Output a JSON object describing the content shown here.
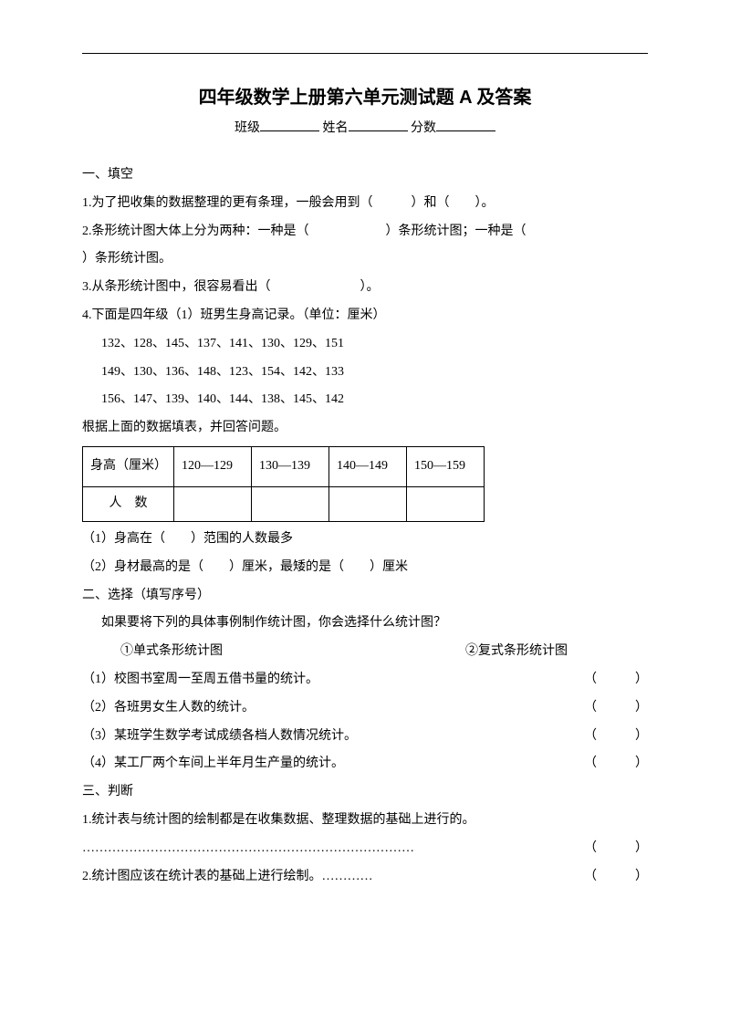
{
  "title": "四年级数学上册第六单元测试题 A 及答案",
  "info": {
    "class": "班级",
    "name": "姓名",
    "score": "分数"
  },
  "s1": {
    "heading": "一、填空",
    "q1": "1.为了把收集的数据整理的更有条理，一般会用到（　　　）和（　　）。",
    "q2a": "2.条形统计图大体上分为两种：一种是（　　　　　　）条形统计图；一种是（",
    "q2b": "）条形统计图。",
    "q3": "3.从条形统计图中，很容易看出（　　　　　　　）。",
    "q4": "4.下面是四年级（1）班男生身高记录。（单位：厘米）",
    "q4_data1": "132、128、145、137、141、130、129、151",
    "q4_data2": "149、130、136、148、123、154、142、133",
    "q4_data3": "156、147、139、140、144、138、145、142",
    "q4_prompt": "根据上面的数据填表，并回答问题。",
    "table": {
      "header": "身高（厘米）",
      "cols": [
        "120—129",
        "130—139",
        "140—149",
        "150—159"
      ],
      "row_label": "人　数"
    },
    "q4_1": "（1）身高在（　　）范围的人数最多",
    "q4_2": "（2）身材最高的是（　　）厘米，最矮的是（　　）厘米"
  },
  "s2": {
    "heading": "二、选择（填写序号）",
    "prompt": "如果要将下列的具体事例制作统计图，你会选择什么统计图？",
    "opt1": "①单式条形统计图",
    "opt2": "②复式条形统计图",
    "q1": "（1）校图书室周一至周五借书量的统计。",
    "q2": "（2）各班男女生人数的统计。",
    "q3": "（3）某班学生数学考试成绩各档人数情况统计。",
    "q4": "（4）某工厂两个车间上半年月生产量的统计。",
    "paren": "（　　　）"
  },
  "s3": {
    "heading": "三、判断",
    "q1": "1.统计表与统计图的绘制都是在收集数据、整理数据的基础上进行的。",
    "q2": "2.统计图应该在统计表的基础上进行绘制。…………",
    "paren": "（　　　）",
    "dots": "……………………………………………………………………"
  }
}
